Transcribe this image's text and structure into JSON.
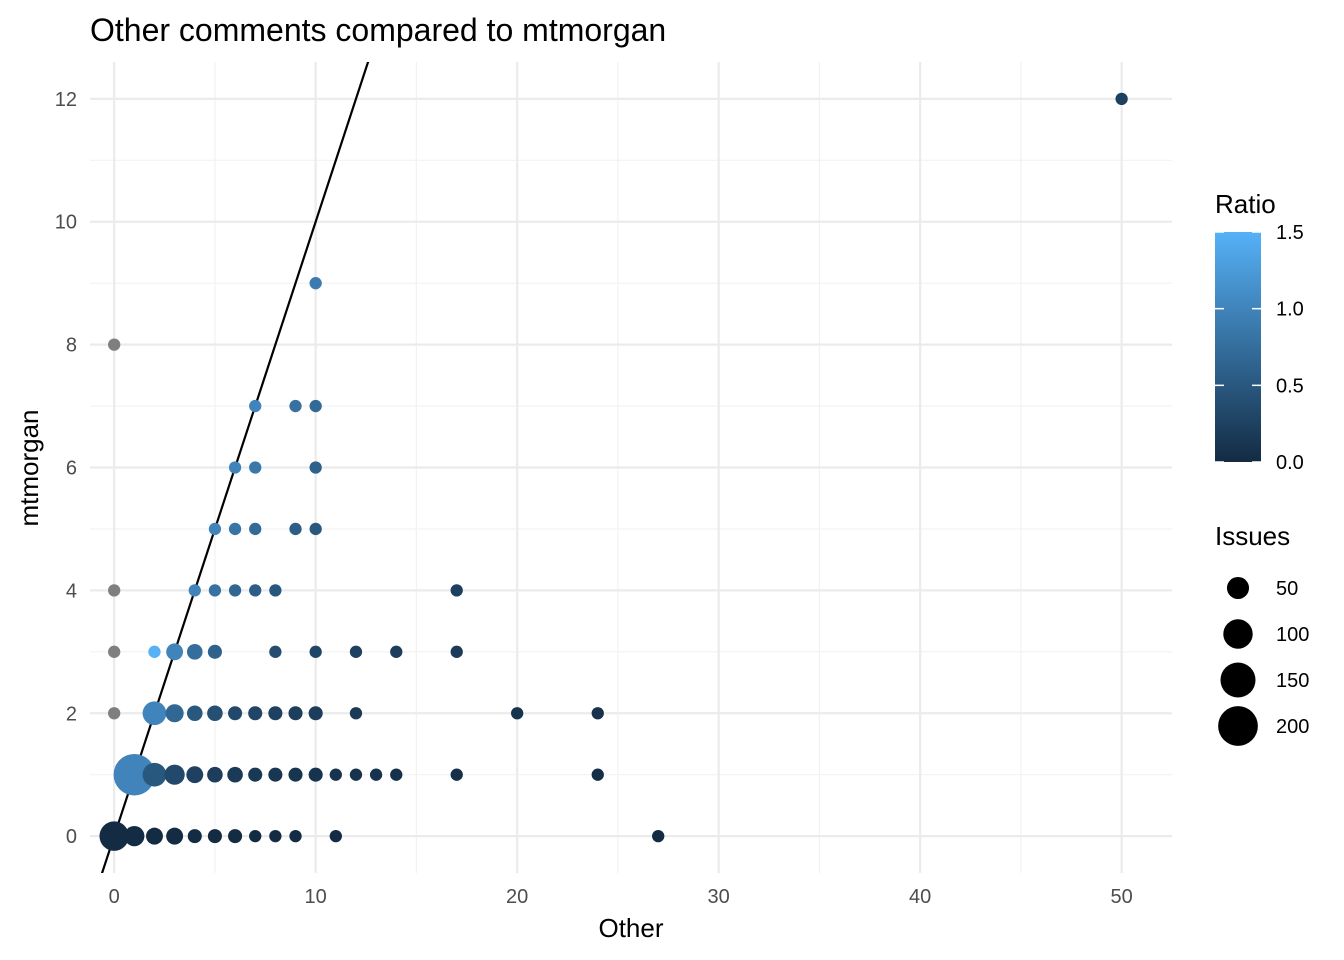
{
  "chart_data": {
    "type": "scatter",
    "title": "Other comments compared to mtmorgan",
    "xlabel": "Other",
    "ylabel": "mtmorgan",
    "xlim": [
      -1.2,
      52.5
    ],
    "ylim": [
      -0.6,
      12.6
    ],
    "x_ticks": [
      0,
      10,
      20,
      30,
      40,
      50
    ],
    "y_ticks": [
      0,
      2,
      4,
      6,
      8,
      10,
      12
    ],
    "grid": true,
    "reference_line": {
      "slope": 1,
      "intercept": 0
    },
    "color_scale": {
      "title": "Ratio",
      "low_color": "#132B43",
      "high_color": "#56B1F7",
      "na_color": "#7f7f7f",
      "range": [
        0,
        1.5
      ],
      "ticks": [
        0.0,
        0.5,
        1.0,
        1.5
      ],
      "tick_labels": [
        "0.0",
        "0.5",
        "1.0",
        "1.5"
      ]
    },
    "size_legend": {
      "title": "Issues",
      "values": [
        50,
        100,
        150,
        200
      ],
      "labels": [
        "50",
        "100",
        "150",
        "200"
      ]
    },
    "legend_position": "right",
    "points": [
      {
        "x": 0,
        "y": 0,
        "issues": 100,
        "ratio": 0.0
      },
      {
        "x": 1,
        "y": 0,
        "issues": 40,
        "ratio": 0.0
      },
      {
        "x": 2,
        "y": 0,
        "issues": 25,
        "ratio": 0.0
      },
      {
        "x": 3,
        "y": 0,
        "issues": 25,
        "ratio": 0.0
      },
      {
        "x": 4,
        "y": 0,
        "issues": 15,
        "ratio": 0.0
      },
      {
        "x": 5,
        "y": 0,
        "issues": 15,
        "ratio": 0.0
      },
      {
        "x": 6,
        "y": 0,
        "issues": 15,
        "ratio": 0.0
      },
      {
        "x": 7,
        "y": 0,
        "issues": 10,
        "ratio": 0.0
      },
      {
        "x": 8,
        "y": 0,
        "issues": 10,
        "ratio": 0.0
      },
      {
        "x": 9,
        "y": 0,
        "issues": 10,
        "ratio": 0.0
      },
      {
        "x": 11,
        "y": 0,
        "issues": 10,
        "ratio": 0.0
      },
      {
        "x": 27,
        "y": 0,
        "issues": 10,
        "ratio": 0.0
      },
      {
        "x": 1,
        "y": 1,
        "issues": 220,
        "ratio": 1.0
      },
      {
        "x": 2,
        "y": 1,
        "issues": 60,
        "ratio": 0.5
      },
      {
        "x": 3,
        "y": 1,
        "issues": 40,
        "ratio": 0.33
      },
      {
        "x": 4,
        "y": 1,
        "issues": 25,
        "ratio": 0.25
      },
      {
        "x": 5,
        "y": 1,
        "issues": 20,
        "ratio": 0.2
      },
      {
        "x": 6,
        "y": 1,
        "issues": 20,
        "ratio": 0.17
      },
      {
        "x": 7,
        "y": 1,
        "issues": 15,
        "ratio": 0.14
      },
      {
        "x": 8,
        "y": 1,
        "issues": 15,
        "ratio": 0.125
      },
      {
        "x": 9,
        "y": 1,
        "issues": 15,
        "ratio": 0.11
      },
      {
        "x": 10,
        "y": 1,
        "issues": 15,
        "ratio": 0.1
      },
      {
        "x": 11,
        "y": 1,
        "issues": 10,
        "ratio": 0.09
      },
      {
        "x": 12,
        "y": 1,
        "issues": 10,
        "ratio": 0.08
      },
      {
        "x": 13,
        "y": 1,
        "issues": 10,
        "ratio": 0.08
      },
      {
        "x": 14,
        "y": 1,
        "issues": 10,
        "ratio": 0.07
      },
      {
        "x": 17,
        "y": 1,
        "issues": 10,
        "ratio": 0.06
      },
      {
        "x": 24,
        "y": 1,
        "issues": 10,
        "ratio": 0.04
      },
      {
        "x": 0,
        "y": 2,
        "issues": 10,
        "ratio": null
      },
      {
        "x": 2,
        "y": 2,
        "issues": 60,
        "ratio": 1.0
      },
      {
        "x": 3,
        "y": 2,
        "issues": 30,
        "ratio": 0.67
      },
      {
        "x": 4,
        "y": 2,
        "issues": 20,
        "ratio": 0.5
      },
      {
        "x": 5,
        "y": 2,
        "issues": 20,
        "ratio": 0.4
      },
      {
        "x": 6,
        "y": 2,
        "issues": 15,
        "ratio": 0.33
      },
      {
        "x": 7,
        "y": 2,
        "issues": 15,
        "ratio": 0.29
      },
      {
        "x": 8,
        "y": 2,
        "issues": 15,
        "ratio": 0.25
      },
      {
        "x": 9,
        "y": 2,
        "issues": 15,
        "ratio": 0.22
      },
      {
        "x": 10,
        "y": 2,
        "issues": 15,
        "ratio": 0.2
      },
      {
        "x": 12,
        "y": 2,
        "issues": 10,
        "ratio": 0.17
      },
      {
        "x": 20,
        "y": 2,
        "issues": 10,
        "ratio": 0.1
      },
      {
        "x": 24,
        "y": 2,
        "issues": 10,
        "ratio": 0.08
      },
      {
        "x": 0,
        "y": 3,
        "issues": 10,
        "ratio": null
      },
      {
        "x": 2,
        "y": 3,
        "issues": 10,
        "ratio": 1.5
      },
      {
        "x": 3,
        "y": 3,
        "issues": 25,
        "ratio": 1.0
      },
      {
        "x": 4,
        "y": 3,
        "issues": 20,
        "ratio": 0.75
      },
      {
        "x": 5,
        "y": 3,
        "issues": 15,
        "ratio": 0.6
      },
      {
        "x": 8,
        "y": 3,
        "issues": 10,
        "ratio": 0.375
      },
      {
        "x": 10,
        "y": 3,
        "issues": 10,
        "ratio": 0.3
      },
      {
        "x": 12,
        "y": 3,
        "issues": 10,
        "ratio": 0.25
      },
      {
        "x": 14,
        "y": 3,
        "issues": 10,
        "ratio": 0.21
      },
      {
        "x": 17,
        "y": 3,
        "issues": 10,
        "ratio": 0.18
      },
      {
        "x": 0,
        "y": 4,
        "issues": 10,
        "ratio": null
      },
      {
        "x": 4,
        "y": 4,
        "issues": 10,
        "ratio": 1.0
      },
      {
        "x": 5,
        "y": 4,
        "issues": 10,
        "ratio": 0.8
      },
      {
        "x": 6,
        "y": 4,
        "issues": 10,
        "ratio": 0.67
      },
      {
        "x": 7,
        "y": 4,
        "issues": 10,
        "ratio": 0.57
      },
      {
        "x": 8,
        "y": 4,
        "issues": 10,
        "ratio": 0.5
      },
      {
        "x": 17,
        "y": 4,
        "issues": 10,
        "ratio": 0.24
      },
      {
        "x": 5,
        "y": 5,
        "issues": 10,
        "ratio": 1.0
      },
      {
        "x": 6,
        "y": 5,
        "issues": 10,
        "ratio": 0.83
      },
      {
        "x": 7,
        "y": 5,
        "issues": 10,
        "ratio": 0.71
      },
      {
        "x": 9,
        "y": 5,
        "issues": 10,
        "ratio": 0.56
      },
      {
        "x": 10,
        "y": 5,
        "issues": 10,
        "ratio": 0.5
      },
      {
        "x": 6,
        "y": 6,
        "issues": 10,
        "ratio": 1.0
      },
      {
        "x": 7,
        "y": 6,
        "issues": 10,
        "ratio": 0.86
      },
      {
        "x": 10,
        "y": 6,
        "issues": 10,
        "ratio": 0.6
      },
      {
        "x": 7,
        "y": 7,
        "issues": 10,
        "ratio": 1.0
      },
      {
        "x": 9,
        "y": 7,
        "issues": 10,
        "ratio": 0.78
      },
      {
        "x": 10,
        "y": 7,
        "issues": 10,
        "ratio": 0.7
      },
      {
        "x": 0,
        "y": 8,
        "issues": 10,
        "ratio": null
      },
      {
        "x": 10,
        "y": 9,
        "issues": 10,
        "ratio": 0.9
      },
      {
        "x": 50,
        "y": 12,
        "issues": 10,
        "ratio": 0.24
      }
    ]
  }
}
